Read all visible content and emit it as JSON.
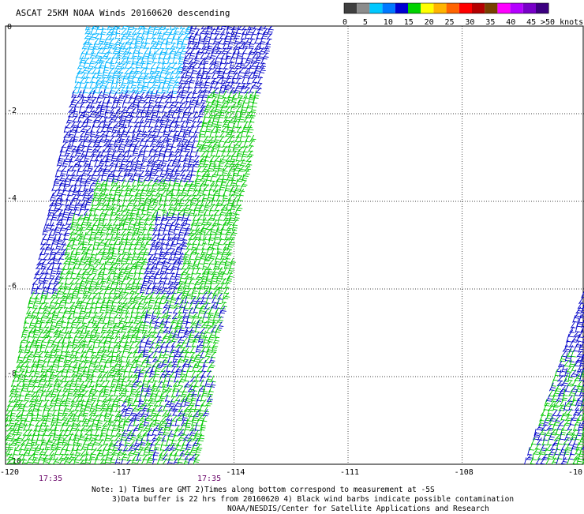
{
  "title": "ASCAT 25KM NOAA Winds 20160620 descending",
  "legend": {
    "labels": [
      "0",
      "5",
      "10",
      "15",
      "20",
      "25",
      "30",
      "35",
      "40",
      "45",
      ">50 knots"
    ],
    "colors": [
      "#404040",
      "#8c8c8c",
      "#00c8ff",
      "#0078ff",
      "#0000d2",
      "#00d200",
      "#ffff00",
      "#ffb400",
      "#ff6400",
      "#ff0000",
      "#b40000",
      "#784000",
      "#ff00ff",
      "#b400ff",
      "#7800c8",
      "#3c0080"
    ]
  },
  "axes": {
    "x_ticks": [
      "-120",
      "-117",
      "-114",
      "-111",
      "-108",
      "-10"
    ],
    "y_ticks": [
      "0",
      "-2",
      "-4",
      "-6",
      "-8",
      "-10"
    ],
    "lon_range": [
      -120,
      -104.8
    ],
    "lat_range": [
      -10,
      0
    ]
  },
  "times": [
    "17:35",
    "17:35"
  ],
  "notes": {
    "line1": "Note: 1) Times are GMT 2)Times along bottom correspond to measurement at -5S",
    "line2": "3)Data buffer is 22 hrs from 20160620 4) Black wind barbs indicate possible contamination",
    "line3": "NOAA/NESDIS/Center for Satellite Applications and Research"
  },
  "swaths": [
    {
      "name": "main-swath",
      "lon_top": [
        -117.9,
        -113.1
      ],
      "lon_bottom": [
        -120.3,
        -115.0
      ]
    },
    {
      "name": "east-swath",
      "lon_top": [
        -104.5,
        -104.5
      ],
      "lon_bottom": [
        -106.4,
        -104.8
      ]
    }
  ],
  "barb_colors": {
    "cyan": "#00b4ff",
    "blue": "#0000c8",
    "green": "#00c800"
  }
}
